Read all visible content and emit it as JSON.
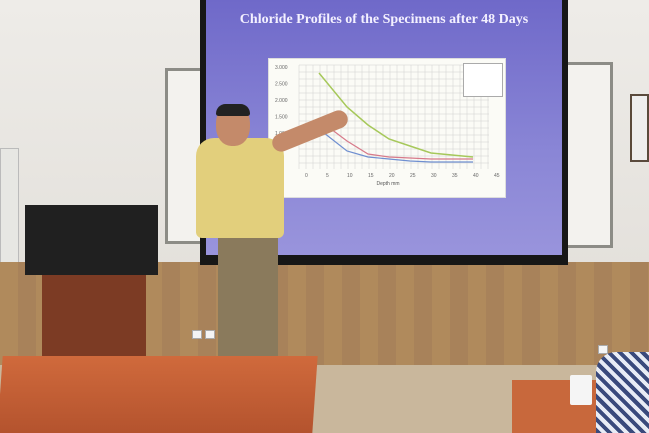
{
  "slide": {
    "title": "Chloride Profiles of the Specimens after 48 Days",
    "x_axis_label": "Depth mm",
    "x_ticks": [
      "0",
      "5",
      "10",
      "15",
      "20",
      "25",
      "30",
      "35",
      "40",
      "45"
    ],
    "y_ticks": [
      "3.000",
      "2.500",
      "2.000",
      "1.500",
      "1.000"
    ],
    "series_colors": [
      "#6f8fd0",
      "#d77a8a",
      "#a6c85a"
    ]
  }
}
